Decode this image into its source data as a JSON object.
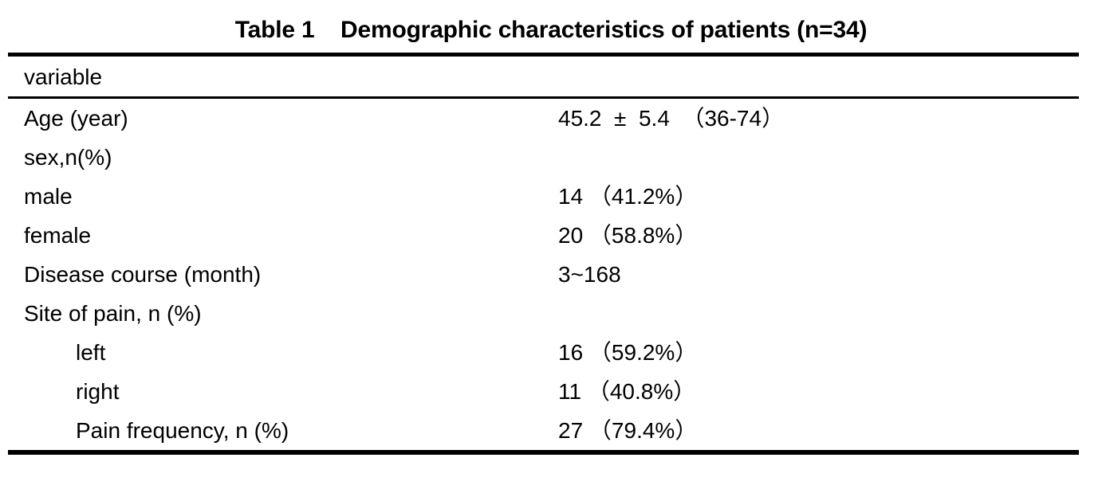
{
  "title": "Table 1    Demographic characteristics of patients (n=34)",
  "table": {
    "header": "variable",
    "rows": [
      {
        "label": "Age (year)",
        "value": "45.2  ±  5.4  （36-74）",
        "indent": false
      },
      {
        "label": "sex,n(%)",
        "value": "",
        "indent": false
      },
      {
        "label": "male",
        "value": "14 （41.2%）",
        "indent": false
      },
      {
        "label": "female",
        "value": "20 （58.8%）",
        "indent": false
      },
      {
        "label": "Disease course (month)",
        "value": "3~168",
        "indent": false
      },
      {
        "label": "Site of pain, n (%)",
        "value": "",
        "indent": false
      },
      {
        "label": "left",
        "value": "16 （59.2%）",
        "indent": true
      },
      {
        "label": "right",
        "value": "11 （40.8%）",
        "indent": true
      },
      {
        "label": "Pain frequency, n (%)",
        "value": "27 （79.4%）",
        "indent": true
      }
    ]
  }
}
